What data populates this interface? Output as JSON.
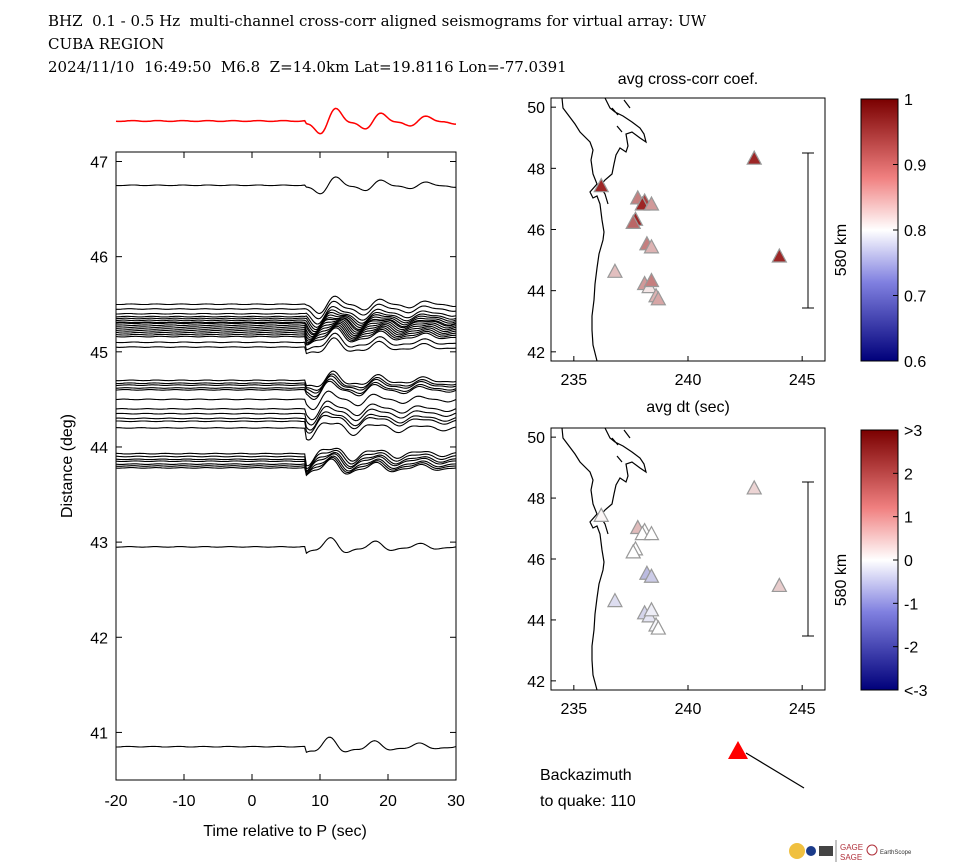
{
  "header": {
    "line1": "BHZ  0.1 - 0.5 Hz  multi-channel cross-corr aligned seismograms for virtual array: UW",
    "line2": "CUBA REGION",
    "line3": "2024/11/10  16:49:50  M6.8  Z=14.0km Lat=19.8116 Lon=-77.0391"
  },
  "colors": {
    "stack_trace": "#ff0000",
    "traces": "#000000",
    "quake_marker": "#ff0000"
  },
  "chart_data": [
    {
      "type": "line",
      "name": "record-section",
      "xlabel": "Time relative to P (sec)",
      "ylabel": "Distance (deg)",
      "xlim": [
        -20,
        30
      ],
      "ylim": [
        40.5,
        47.1
      ],
      "xticks": [
        -20,
        -10,
        0,
        10,
        20,
        30
      ],
      "yticks": [
        41,
        42,
        43,
        44,
        45,
        46,
        47
      ],
      "trace_distances": [
        46.75,
        45.5,
        45.45,
        45.4,
        45.37,
        45.35,
        45.33,
        45.31,
        45.3,
        45.28,
        45.26,
        45.24,
        45.22,
        45.2,
        45.18,
        45.16,
        45.1,
        45.05,
        44.7,
        44.67,
        44.65,
        44.62,
        44.6,
        44.5,
        44.4,
        44.35,
        44.3,
        44.27,
        44.2,
        43.93,
        43.9,
        43.87,
        43.85,
        43.82,
        43.8,
        43.78,
        42.95,
        40.85
      ],
      "stack_trace": "red reference stack above panel"
    },
    {
      "type": "scatter",
      "name": "avg-cross-corr-map",
      "title": "avg cross-corr coef.",
      "xlim": [
        234,
        246
      ],
      "ylim": [
        41.7,
        50.3
      ],
      "xticks": [
        235,
        240,
        245
      ],
      "yticks": [
        42,
        44,
        46,
        48,
        50
      ],
      "scale_bar": "580 km",
      "colorbar": {
        "ticks": [
          "1",
          "0.9",
          "0.8",
          "0.7",
          "0.6"
        ],
        "range": [
          0.6,
          1.0
        ]
      },
      "points": [
        {
          "lon": 236.2,
          "lat": 47.4,
          "value": 0.97
        },
        {
          "lon": 237.8,
          "lat": 47.0,
          "value": 0.9
        },
        {
          "lon": 238.1,
          "lat": 46.9,
          "value": 0.95
        },
        {
          "lon": 238.0,
          "lat": 46.8,
          "value": 0.97
        },
        {
          "lon": 238.4,
          "lat": 46.8,
          "value": 0.88
        },
        {
          "lon": 237.7,
          "lat": 46.3,
          "value": 0.97
        },
        {
          "lon": 237.6,
          "lat": 46.2,
          "value": 0.92
        },
        {
          "lon": 238.2,
          "lat": 45.5,
          "value": 0.9
        },
        {
          "lon": 238.4,
          "lat": 45.4,
          "value": 0.86
        },
        {
          "lon": 236.8,
          "lat": 44.6,
          "value": 0.85
        },
        {
          "lon": 238.1,
          "lat": 44.2,
          "value": 0.88
        },
        {
          "lon": 238.3,
          "lat": 44.1,
          "value": 0.82
        },
        {
          "lon": 238.4,
          "lat": 44.3,
          "value": 0.9
        },
        {
          "lon": 238.6,
          "lat": 43.8,
          "value": 0.86
        },
        {
          "lon": 238.7,
          "lat": 43.7,
          "value": 0.87
        },
        {
          "lon": 242.9,
          "lat": 48.3,
          "value": 0.97
        },
        {
          "lon": 244.0,
          "lat": 45.1,
          "value": 0.97
        }
      ]
    },
    {
      "type": "scatter",
      "name": "avg-dt-map",
      "title": "avg dt (sec)",
      "xlim": [
        234,
        246
      ],
      "ylim": [
        41.7,
        50.3
      ],
      "xticks": [
        235,
        240,
        245
      ],
      "yticks": [
        42,
        44,
        46,
        48,
        50
      ],
      "scale_bar": "580 km",
      "colorbar": {
        "ticks": [
          ">3",
          "2",
          "1",
          "0",
          "-1",
          "-2",
          "<-3"
        ],
        "range": [
          -3,
          3
        ]
      },
      "points": [
        {
          "lon": 236.2,
          "lat": 47.4,
          "value": 0.1
        },
        {
          "lon": 237.8,
          "lat": 47.0,
          "value": 0.8
        },
        {
          "lon": 238.1,
          "lat": 46.9,
          "value": 0.0
        },
        {
          "lon": 238.0,
          "lat": 46.8,
          "value": 0.0
        },
        {
          "lon": 238.4,
          "lat": 46.8,
          "value": 0.0
        },
        {
          "lon": 237.7,
          "lat": 46.3,
          "value": 0.0
        },
        {
          "lon": 237.6,
          "lat": 46.2,
          "value": 0.0
        },
        {
          "lon": 238.2,
          "lat": 45.5,
          "value": -0.8
        },
        {
          "lon": 238.4,
          "lat": 45.4,
          "value": -0.6
        },
        {
          "lon": 236.8,
          "lat": 44.6,
          "value": -0.4
        },
        {
          "lon": 238.1,
          "lat": 44.2,
          "value": -0.5
        },
        {
          "lon": 238.3,
          "lat": 44.1,
          "value": -0.3
        },
        {
          "lon": 238.4,
          "lat": 44.3,
          "value": -0.2
        },
        {
          "lon": 238.6,
          "lat": 43.8,
          "value": -0.1
        },
        {
          "lon": 238.7,
          "lat": 43.7,
          "value": 0.0
        },
        {
          "lon": 242.9,
          "lat": 48.3,
          "value": 0.5
        },
        {
          "lon": 244.0,
          "lat": 45.1,
          "value": 0.6
        }
      ]
    }
  ],
  "backazimuth": {
    "label_line1": "Backazimuth",
    "label_line2": "to quake:  110",
    "value": 110
  },
  "logos": {
    "text1": "GAGE",
    "text2": "SAGE",
    "text3": "EarthScope"
  }
}
